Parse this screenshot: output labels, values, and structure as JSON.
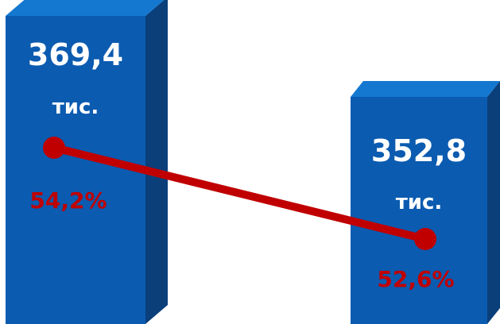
{
  "chart_data": {
    "type": "bar",
    "title": "",
    "xlabel": "",
    "ylabel": "",
    "categories": [
      "",
      ""
    ],
    "series": [
      {
        "values": [
          369.4,
          352.8
        ],
        "labels": [
          "369,4",
          "352,8"
        ],
        "unit_labels": [
          "тис.",
          "тис."
        ]
      },
      {
        "type": "line",
        "values": [
          54.2,
          52.6
        ],
        "labels": [
          "54,2%",
          "52,6%"
        ]
      }
    ],
    "grid": false,
    "legend": "none"
  },
  "colors": {
    "bar_front": "#0b5bb0",
    "bar_top": "#1478d0",
    "bar_side": "#0a3f7a",
    "line": "#c00000",
    "marker": "#c00000",
    "pct_text": "#c00000",
    "value_text": "#ffffff"
  }
}
